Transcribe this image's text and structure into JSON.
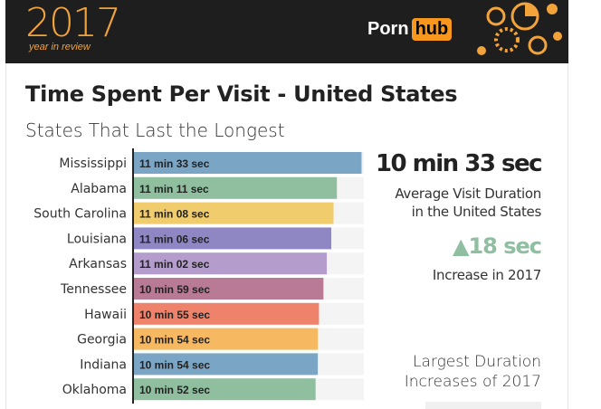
{
  "header": {
    "year": "2017",
    "year_sub": "year in review",
    "logo_part1": "Porn",
    "logo_part2": "hub"
  },
  "title": "Time Spent Per Visit - United States",
  "subtitle": "States That Last the Longest",
  "stats": {
    "average_value": "10 min 33 sec",
    "average_label_line1": "Average Visit Duration",
    "average_label_line2": "in the United States",
    "increase_value": "18 sec",
    "increase_label": "Increase in 2017",
    "largest_line1": "Largest Duration",
    "largest_line2": "Increases of 2017"
  },
  "chart_data": {
    "type": "bar",
    "orientation": "horizontal",
    "title": "Time Spent Per Visit - United States",
    "subtitle": "States That Last the Longest",
    "categories": [
      "Mississippi",
      "Alabama",
      "South Carolina",
      "Louisiana",
      "Arkansas",
      "Tennessee",
      "Hawaii",
      "Georgia",
      "Indiana",
      "Oklahoma"
    ],
    "values_seconds": [
      693,
      671,
      668,
      666,
      662,
      659,
      655,
      654,
      654,
      652
    ],
    "labels": [
      "11 min 33 sec",
      "11 min 11 sec",
      "11 min 08 sec",
      "11 min 06 sec",
      "11 min 02 sec",
      "10 min 59 sec",
      "10 min 55 sec",
      "10 min 54 sec",
      "10 min 54 sec",
      "10 min 52 sec"
    ],
    "colors": [
      "#7ba5c4",
      "#8fbf9f",
      "#f0cc6c",
      "#8f86c4",
      "#b49ccc",
      "#b87a95",
      "#ef826a",
      "#f6b860",
      "#7ba5c4",
      "#8fbf9f"
    ],
    "track_color": "#f4f4f4",
    "grid": false,
    "legend": "none"
  }
}
